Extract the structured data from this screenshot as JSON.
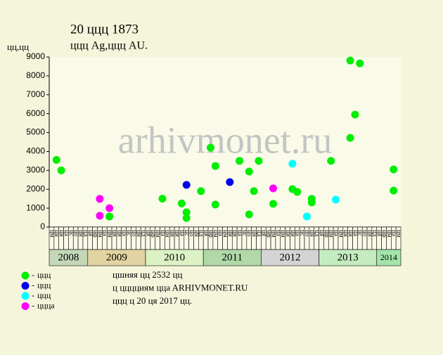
{
  "chart_data": {
    "type": "scatter",
    "title": "20 ццц 1873",
    "subtitle": "ццц Ag,ццц AU.",
    "y_label": "цц,цц",
    "watermark": "arhivmonet.ru",
    "xlim": [
      "2008-05",
      "2014-05"
    ],
    "month_labels": [
      "ця",
      "цф",
      "цм",
      "ца",
      "цм",
      "ци",
      "ци",
      "ца",
      "цс",
      "цо",
      "цн",
      "цд"
    ],
    "years": [
      "2008",
      "2009",
      "2010",
      "2011",
      "2012",
      "2013",
      "2014"
    ],
    "ylim": [
      0,
      9000
    ],
    "yticks": [
      0,
      1000,
      2000,
      3000,
      4000,
      5000,
      6000,
      7000,
      8000,
      9000
    ],
    "series": [
      {
        "name": "ццц",
        "color": "#00ee00",
        "x": [
          "2008-06",
          "2008-07",
          "2009-05",
          "2010-04",
          "2010-08",
          "2010-09",
          "2010-09",
          "2010-12",
          "2011-02",
          "2011-03",
          "2011-03",
          "2011-08",
          "2011-10",
          "2011-10",
          "2011-11",
          "2011-12",
          "2012-03",
          "2012-07",
          "2012-08",
          "2012-11",
          "2012-11",
          "2013-03",
          "2013-07",
          "2013-07",
          "2013-08",
          "2013-09",
          "2014-04",
          "2014-04"
        ],
        "values": [
          3550,
          3000,
          560,
          1500,
          1250,
          480,
          780,
          1900,
          4200,
          3230,
          1190,
          3500,
          2940,
          670,
          1900,
          3500,
          1230,
          2010,
          1860,
          1490,
          1300,
          3500,
          8810,
          4720,
          5950,
          8660,
          3050,
          1930
        ]
      },
      {
        "name": "ццц",
        "color": "#0000ee",
        "x": [
          "2010-09",
          "2011-06"
        ],
        "values": [
          2230,
          2380
        ]
      },
      {
        "name": "ццц",
        "color": "#00ffff",
        "x": [
          "2012-07",
          "2013-04",
          "2012-10"
        ],
        "values": [
          3350,
          1450,
          560
        ]
      },
      {
        "name": "цццa",
        "color": "#ff00ff",
        "x": [
          "2009-03",
          "2009-03",
          "2009-05",
          "2012-03"
        ],
        "values": [
          1490,
          600,
          1000,
          2045
        ]
      }
    ],
    "notes": [
      "цшняя цц 2532 цц",
      "ц цццциям ццa ARHIVMONET.RU",
      "ццц ц 20 ця 2017 цц."
    ]
  }
}
